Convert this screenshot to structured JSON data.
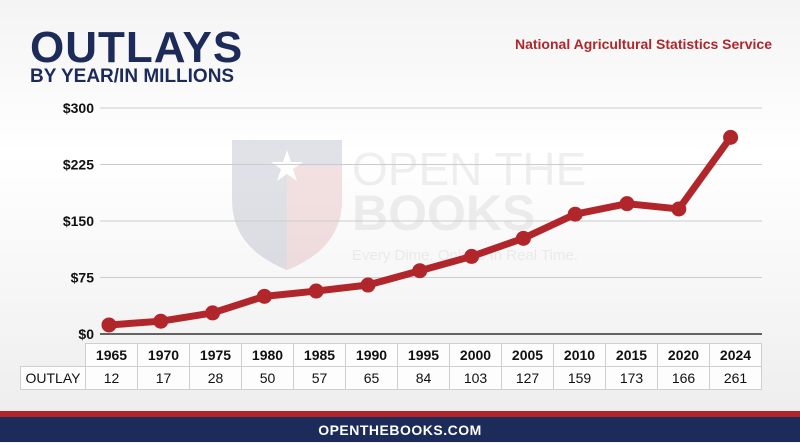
{
  "header": {
    "title": "OUTLAYS",
    "subtitle": "BY YEAR/IN MILLIONS",
    "source": "National Agricultural Statistics Service"
  },
  "watermark": {
    "line1": "OPEN THE",
    "line2": "BOOKS",
    "tagline": "Every Dime. Online. In Real Time."
  },
  "table": {
    "row_label": "OUTLAY"
  },
  "footer": {
    "url": "OPENTHEBOOKS.COM"
  },
  "colors": {
    "line": "#b1262b",
    "navy": "#1c2b59"
  },
  "chart_data": {
    "type": "line",
    "title": "OUTLAYS",
    "subtitle": "BY YEAR/IN MILLIONS",
    "categories": [
      "1965",
      "1970",
      "1975",
      "1980",
      "1985",
      "1990",
      "1995",
      "2000",
      "2005",
      "2010",
      "2015",
      "2020",
      "2024"
    ],
    "values": [
      12,
      17,
      28,
      50,
      57,
      65,
      84,
      103,
      127,
      159,
      173,
      166,
      261
    ],
    "y_ticks": [
      0,
      75,
      150,
      225,
      300
    ],
    "y_tick_labels": [
      "$0",
      "$75",
      "$150",
      "$225",
      "$300"
    ],
    "ylim": [
      0,
      300
    ],
    "grid": true,
    "xlabel": "",
    "ylabel": ""
  }
}
